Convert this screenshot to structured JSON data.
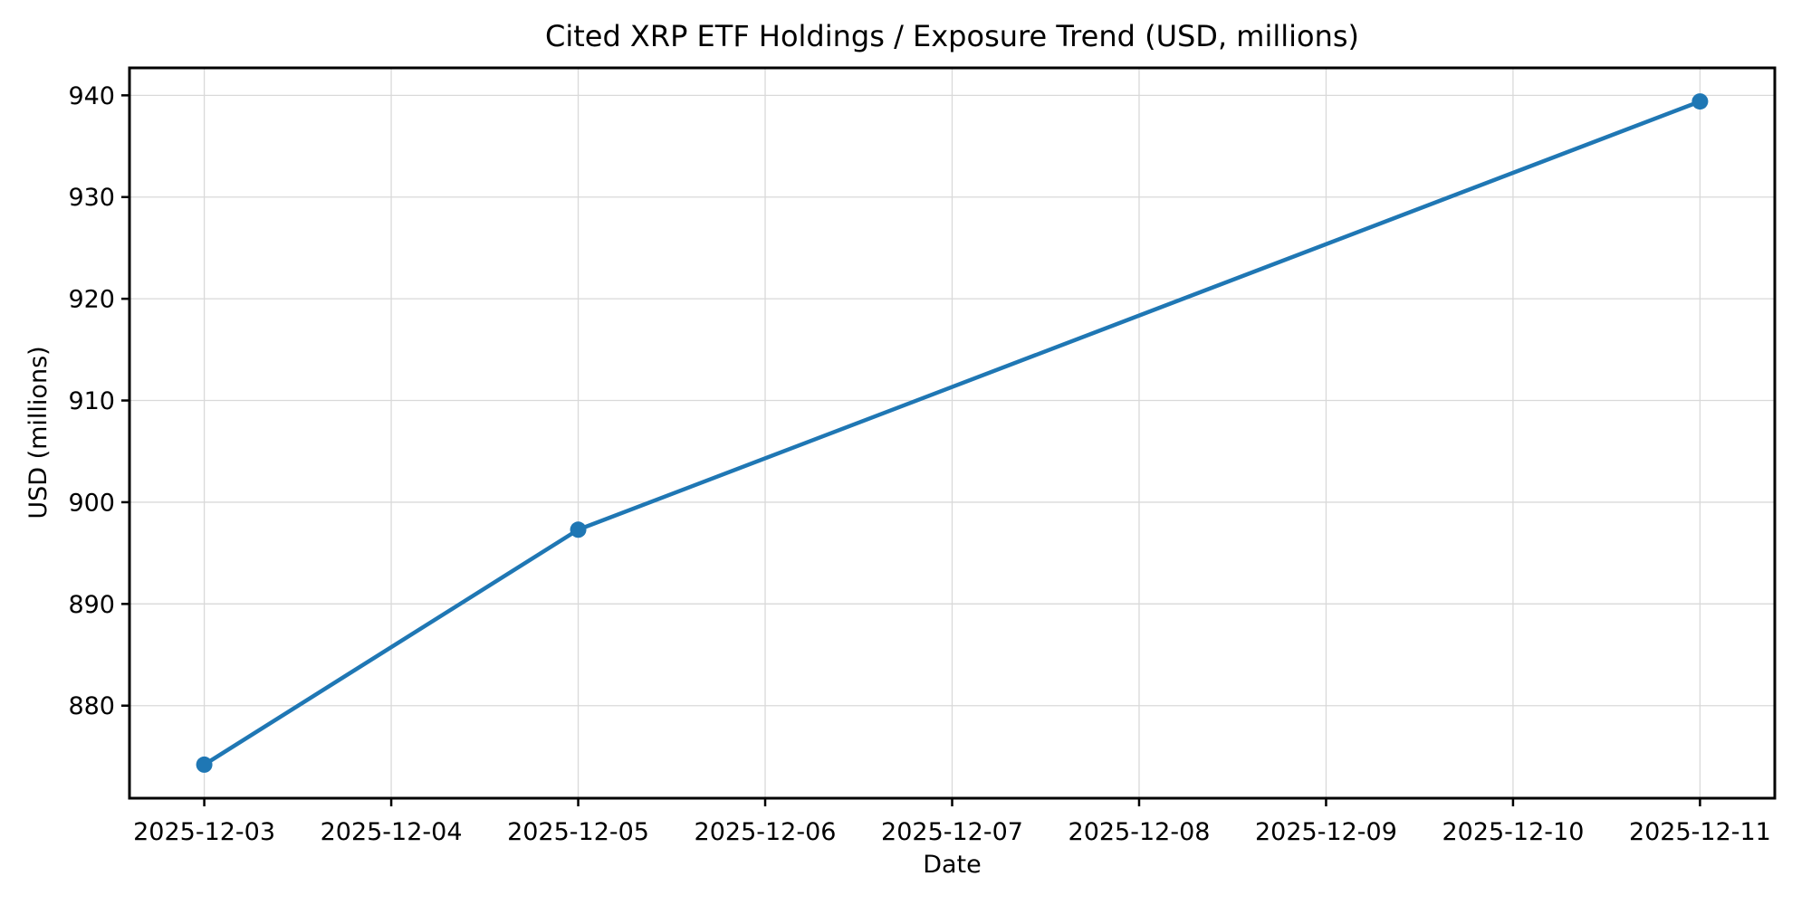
{
  "chart_data": {
    "type": "line",
    "title": "Cited XRP ETF Holdings / Exposure Trend (USD, millions)",
    "xlabel": "Date",
    "ylabel": "USD (millions)",
    "series": [
      {
        "name": "Cited XRP ETF Holdings / Exposure",
        "x_dates": [
          "2025-12-03",
          "2025-12-05",
          "2025-12-11"
        ],
        "x_day_index": [
          0,
          2,
          8
        ],
        "values": [
          874.2,
          897.3,
          939.4
        ]
      }
    ],
    "xtick_labels": [
      "2025-12-03",
      "2025-12-04",
      "2025-12-05",
      "2025-12-06",
      "2025-12-07",
      "2025-12-08",
      "2025-12-09",
      "2025-12-10",
      "2025-12-11"
    ],
    "yticks": [
      880,
      890,
      900,
      910,
      920,
      930,
      940
    ],
    "xlim_days": [
      -0.4,
      8.4
    ],
    "ylim": [
      870.9,
      942.7
    ],
    "grid": true,
    "legend": "none",
    "line_color": "#1f77b4",
    "marker": "circle",
    "grid_color": "#d9d9d9",
    "spine_color": "#000000",
    "background_color": "#ffffff"
  }
}
